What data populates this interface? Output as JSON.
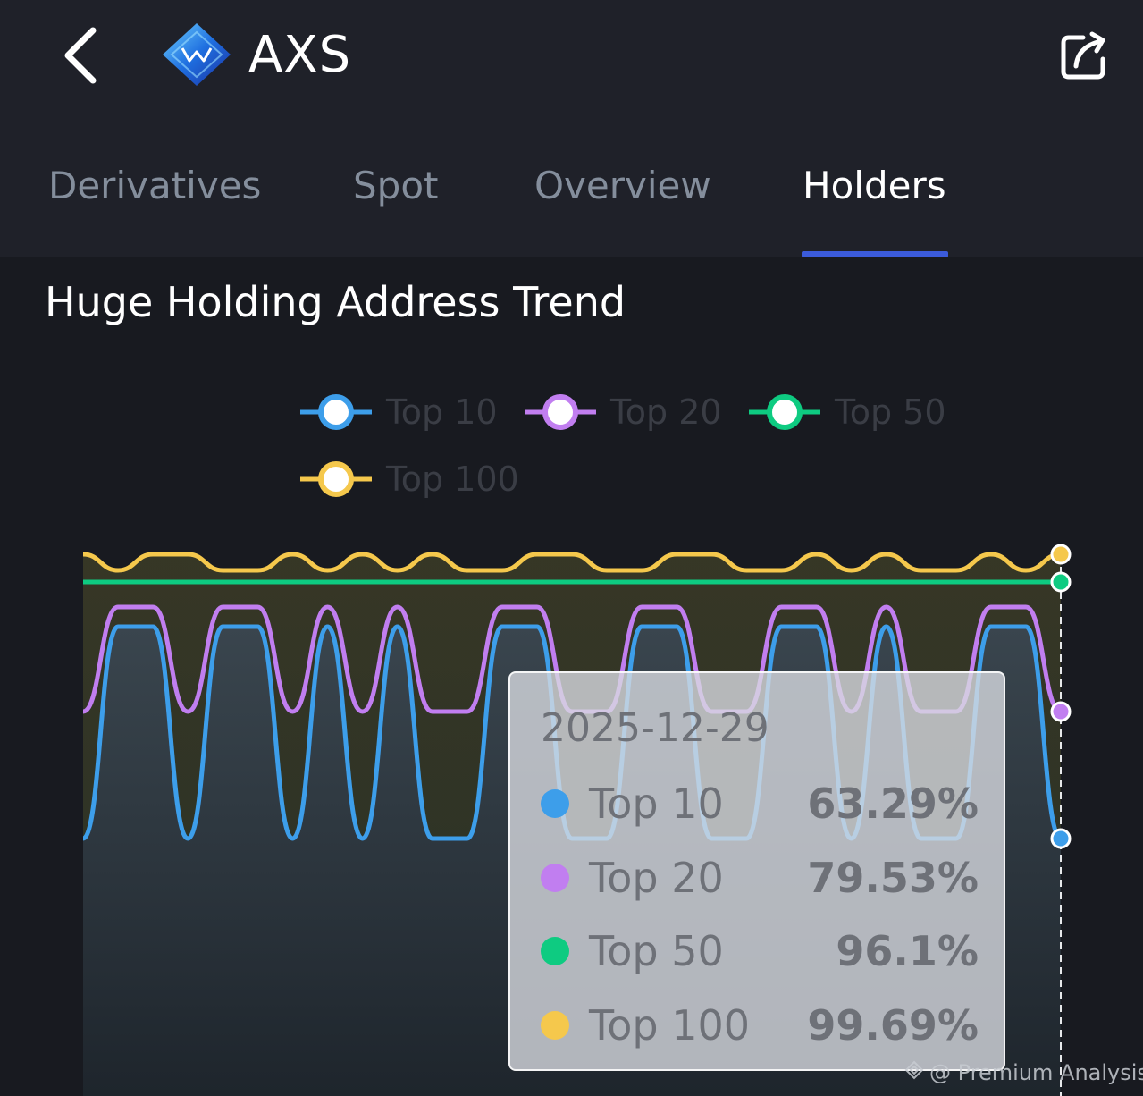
{
  "header": {
    "back_icon": "chevron-left-icon",
    "coin_icon": "axs-logo-icon",
    "coin_name": "AXS",
    "share_icon": "share-icon"
  },
  "tabs": [
    {
      "label": "Derivatives",
      "active": false
    },
    {
      "label": "Spot",
      "active": false
    },
    {
      "label": "Overview",
      "active": false
    },
    {
      "label": "Holders",
      "active": true
    }
  ],
  "section": {
    "title": "Huge Holding Address Trend"
  },
  "colors": {
    "top10": "#3d9eea",
    "top20": "#c17ef0",
    "top50": "#0ecb81",
    "top100": "#f5c84c",
    "accent": "#3b5bdb"
  },
  "legend": [
    {
      "label": "Top 10",
      "color": "#3d9eea"
    },
    {
      "label": "Top 20",
      "color": "#c17ef0"
    },
    {
      "label": "Top 50",
      "color": "#0ecb81"
    },
    {
      "label": "Top 100",
      "color": "#f5c84c"
    }
  ],
  "chart_data": {
    "type": "line",
    "grid": false,
    "legend_position": "top",
    "ylim": [
      0,
      100
    ],
    "series": [
      {
        "name": "Top 10",
        "color": "#3d9eea",
        "values": [
          63.29,
          75.6,
          75.6,
          63.29,
          75.6,
          75.6,
          63.29,
          75.6,
          63.29,
          75.6,
          63.29,
          63.29,
          75.6,
          75.6,
          63.29,
          63.29,
          75.6,
          75.6,
          63.29,
          63.29,
          75.6,
          75.6,
          63.29,
          75.6,
          63.29,
          63.29,
          75.6,
          75.6,
          63.29
        ]
      },
      {
        "name": "Top 20",
        "color": "#c17ef0",
        "values": [
          79.53,
          88.8,
          88.8,
          79.53,
          88.8,
          88.8,
          79.53,
          88.8,
          79.53,
          88.8,
          79.53,
          79.53,
          88.8,
          88.8,
          79.53,
          79.53,
          88.8,
          88.8,
          79.53,
          79.53,
          88.8,
          88.8,
          79.53,
          88.8,
          79.53,
          79.53,
          88.8,
          88.8,
          79.53
        ]
      },
      {
        "name": "Top 50",
        "color": "#0ecb81",
        "values": [
          96.1,
          96.1,
          96.1,
          96.1,
          96.1,
          96.1,
          96.1,
          96.1,
          96.1,
          96.1,
          96.1,
          96.1,
          96.1,
          96.1,
          96.1,
          96.1,
          96.1,
          96.1,
          96.1,
          96.1,
          96.1,
          96.1,
          96.1,
          96.1,
          96.1,
          96.1,
          96.1,
          96.1,
          96.1
        ]
      },
      {
        "name": "Top 100",
        "color": "#f5c84c",
        "values": [
          99.69,
          98.5,
          99.69,
          99.69,
          98.5,
          98.5,
          99.69,
          98.5,
          99.69,
          98.5,
          99.69,
          98.5,
          98.5,
          99.69,
          99.69,
          98.5,
          98.5,
          99.69,
          99.69,
          98.5,
          98.5,
          99.69,
          98.5,
          99.69,
          98.5,
          98.5,
          99.69,
          98.5,
          99.69
        ]
      }
    ]
  },
  "tooltip": {
    "date": "2025-12-29",
    "rows": [
      {
        "name": "Top 10",
        "value": "63.29%",
        "color": "#3d9eea"
      },
      {
        "name": "Top 20",
        "value": "79.53%",
        "color": "#c17ef0"
      },
      {
        "name": "Top 50",
        "value": "96.1%",
        "color": "#0ecb81"
      },
      {
        "name": "Top 100",
        "value": "99.69%",
        "color": "#f5c84c"
      }
    ]
  },
  "watermark": {
    "text": "@ Premium Analysis"
  }
}
